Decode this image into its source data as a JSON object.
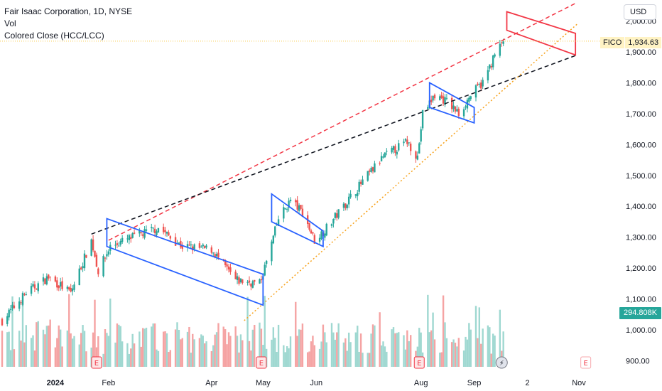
{
  "legend": {
    "title": "Fair Isaac Corporation, 1D, NYSE",
    "line2": "Vol",
    "line3": "Colored Close (HCC/LCC)"
  },
  "toolbar": {
    "currency": "USD"
  },
  "last_price": {
    "symbol": "FICO",
    "value": "1,934.63"
  },
  "volume_badge": "294.808K",
  "colors": {
    "up": "#26a69a",
    "down": "#ef5350",
    "vol_up": "#9fd8d1",
    "vol_down": "#f5a3a3",
    "rect_blue": "#2962ff",
    "rect_red": "#f23645",
    "line_red": "#f23645",
    "line_black": "#131722",
    "line_orange": "#f7a21b",
    "price_line": "#f7c948"
  },
  "event_markers": [
    {
      "label": "E",
      "kind": "earnings",
      "date": "2024-01-25"
    },
    {
      "label": "E",
      "kind": "earnings",
      "date": "2024-04-30"
    },
    {
      "label": "E",
      "kind": "earnings",
      "date": "2024-07-31"
    },
    {
      "label": "⚡",
      "kind": "split-dividend",
      "date": "2024-09-17"
    },
    {
      "label": "E",
      "kind": "earnings-future",
      "date": "2024-11-05"
    }
  ],
  "chart_data": {
    "type": "candlestick",
    "title": "Fair Isaac Corporation, 1D, NYSE",
    "ylabel": "USD",
    "ylim": [
      850,
      2050
    ],
    "y_ticks": [
      "900.00",
      "1,000.00",
      "1,100.00",
      "1,200.00",
      "1,300.00",
      "1,400.00",
      "1,500.00",
      "1,600.00",
      "1,700.00",
      "1,800.00",
      "1,900.00",
      "2,000.00"
    ],
    "x_ticks": [
      "2024",
      "Feb",
      "Apr",
      "May",
      "Jun",
      "Aug",
      "Sep",
      "2",
      "Nov"
    ],
    "grid": false,
    "keypoints": [
      {
        "date": "2023-12-01",
        "close": 1030
      },
      {
        "date": "2023-12-15",
        "close": 1120
      },
      {
        "date": "2023-12-28",
        "close": 1170
      },
      {
        "date": "2024-01-10",
        "close": 1120
      },
      {
        "date": "2024-01-22",
        "close": 1290
      },
      {
        "date": "2024-01-26",
        "close": 1190
      },
      {
        "date": "2024-02-02",
        "close": 1270
      },
      {
        "date": "2024-02-15",
        "close": 1300
      },
      {
        "date": "2024-03-01",
        "close": 1330
      },
      {
        "date": "2024-03-15",
        "close": 1270
      },
      {
        "date": "2024-04-01",
        "close": 1260
      },
      {
        "date": "2024-04-15",
        "close": 1160
      },
      {
        "date": "2024-04-29",
        "close": 1150
      },
      {
        "date": "2024-05-03",
        "close": 1220
      },
      {
        "date": "2024-05-10",
        "close": 1360
      },
      {
        "date": "2024-05-17",
        "close": 1420
      },
      {
        "date": "2024-05-24",
        "close": 1380
      },
      {
        "date": "2024-05-31",
        "close": 1290
      },
      {
        "date": "2024-06-07",
        "close": 1330
      },
      {
        "date": "2024-06-14",
        "close": 1380
      },
      {
        "date": "2024-06-28",
        "close": 1480
      },
      {
        "date": "2024-07-10",
        "close": 1560
      },
      {
        "date": "2024-07-24",
        "close": 1610
      },
      {
        "date": "2024-07-30",
        "close": 1560
      },
      {
        "date": "2024-08-02",
        "close": 1700
      },
      {
        "date": "2024-08-09",
        "close": 1760
      },
      {
        "date": "2024-08-16",
        "close": 1740
      },
      {
        "date": "2024-08-23",
        "close": 1700
      },
      {
        "date": "2024-08-30",
        "close": 1760
      },
      {
        "date": "2024-09-06",
        "close": 1800
      },
      {
        "date": "2024-09-13",
        "close": 1890
      },
      {
        "date": "2024-09-18",
        "close": 1934.63
      }
    ],
    "trendlines": [
      {
        "color": "red",
        "style": "dashed",
        "from": {
          "date": "2024-02-01",
          "price": 1290
        },
        "to": {
          "date": "2024-10-31",
          "price": 2060
        }
      },
      {
        "color": "black",
        "style": "dashed",
        "from": {
          "date": "2024-01-22",
          "price": 1310
        },
        "to": {
          "date": "2024-10-31",
          "price": 1890
        }
      },
      {
        "color": "orange",
        "style": "dotted",
        "from": {
          "date": "2024-04-20",
          "price": 1030
        },
        "to": {
          "date": "2024-10-31",
          "price": 1990
        }
      }
    ],
    "rectangles": [
      {
        "color": "blue",
        "label": "channel-1",
        "from": "2024-01-31",
        "to": "2024-05-01",
        "top": [
          1360,
          1180
        ],
        "bottom": [
          1270,
          1080
        ]
      },
      {
        "color": "blue",
        "label": "channel-2",
        "from": "2024-05-06",
        "to": "2024-06-05",
        "top": [
          1440,
          1320
        ],
        "bottom": [
          1350,
          1270
        ]
      },
      {
        "color": "blue",
        "label": "channel-3",
        "from": "2024-08-06",
        "to": "2024-09-01",
        "top": [
          1800,
          1720
        ],
        "bottom": [
          1720,
          1670
        ]
      },
      {
        "color": "red",
        "label": "projection",
        "from": "2024-09-20",
        "to": "2024-10-30",
        "top": [
          2030,
          1960
        ],
        "bottom": [
          1970,
          1890
        ]
      }
    ]
  }
}
